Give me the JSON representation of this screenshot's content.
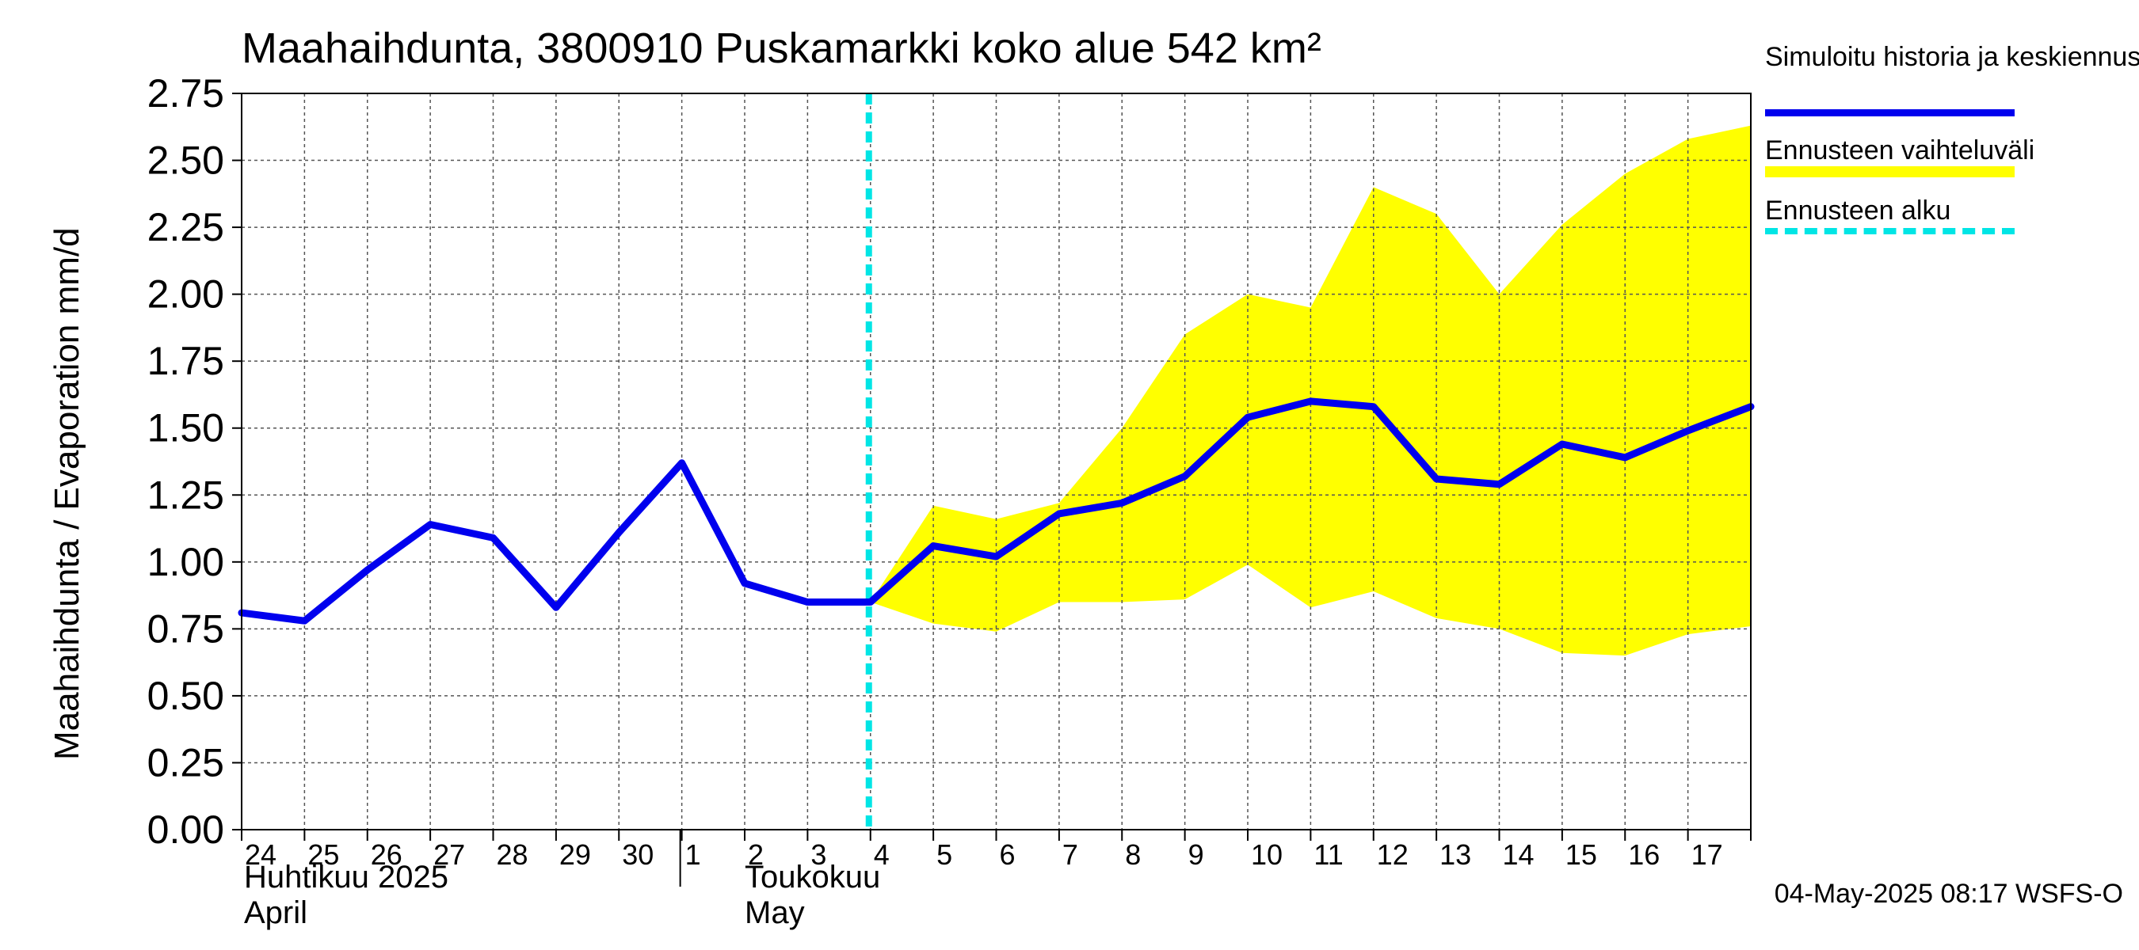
{
  "chart_data": {
    "type": "line",
    "title": "Maahaihdunta, 3800910 Puskamarkki koko alue 542 km²",
    "ylabel": "Maahaihdunta / Evaporation   mm/d",
    "ylim": [
      0,
      2.75
    ],
    "y_ticks": [
      "0.00",
      "0.25",
      "0.50",
      "0.75",
      "1.00",
      "1.25",
      "1.50",
      "1.75",
      "2.00",
      "2.25",
      "2.50",
      "2.75"
    ],
    "x_tick_labels": [
      "24",
      "25",
      "26",
      "27",
      "28",
      "29",
      "30",
      "1",
      "2",
      "3",
      "4",
      "5",
      "6",
      "7",
      "8",
      "9",
      "10",
      "11",
      "12",
      "13",
      "14",
      "15",
      "16",
      "17"
    ],
    "month_labels": {
      "april_fi": "Huhtikuu  2025",
      "april_en": "April",
      "may_fi": "Toukokuu",
      "may_en": "May"
    },
    "dates": [
      "2025-04-24",
      "2025-04-25",
      "2025-04-26",
      "2025-04-27",
      "2025-04-28",
      "2025-04-29",
      "2025-04-30",
      "2025-05-01",
      "2025-05-02",
      "2025-05-03",
      "2025-05-04",
      "2025-05-05",
      "2025-05-06",
      "2025-05-07",
      "2025-05-08",
      "2025-05-09",
      "2025-05-10",
      "2025-05-11",
      "2025-05-12",
      "2025-05-13",
      "2025-05-14",
      "2025-05-15",
      "2025-05-16",
      "2025-05-17",
      "2025-05-18"
    ],
    "series": [
      {
        "name": "Simuloitu historia ja keskiennuste",
        "color": "#0000ee",
        "values": [
          0.81,
          0.78,
          0.97,
          1.14,
          1.09,
          0.83,
          1.11,
          1.37,
          0.92,
          0.85,
          0.85,
          1.06,
          1.02,
          1.18,
          1.22,
          1.32,
          1.54,
          1.6,
          1.58,
          1.31,
          1.29,
          1.44,
          1.39,
          1.49,
          1.58
        ]
      },
      {
        "name": "Ennusteen vaihteluväli",
        "color": "#ffff00",
        "band_dates": [
          "2025-05-04",
          "2025-05-05",
          "2025-05-06",
          "2025-05-07",
          "2025-05-08",
          "2025-05-09",
          "2025-05-10",
          "2025-05-11",
          "2025-05-12",
          "2025-05-13",
          "2025-05-14",
          "2025-05-15",
          "2025-05-16",
          "2025-05-17",
          "2025-05-18"
        ],
        "upper": [
          0.85,
          1.21,
          1.16,
          1.22,
          1.5,
          1.85,
          2.0,
          1.95,
          2.4,
          2.3,
          2.0,
          2.26,
          2.45,
          2.58,
          2.63
        ],
        "lower": [
          0.85,
          0.77,
          0.74,
          0.85,
          0.85,
          0.86,
          0.99,
          0.83,
          0.89,
          0.79,
          0.75,
          0.66,
          0.65,
          0.73,
          0.76
        ]
      }
    ],
    "forecast_start": {
      "name": "Ennusteen alku",
      "date": "2025-05-04",
      "color": "#00e5e5"
    },
    "legend": [
      {
        "label": "Simuloitu historia ja keskiennuste",
        "color": "#0000ee",
        "style": "solid"
      },
      {
        "label": "Ennusteen vaihteluväli",
        "color": "#ffff00",
        "style": "solid"
      },
      {
        "label": "Ennusteen alku",
        "color": "#00e5e5",
        "style": "dashed"
      }
    ],
    "legend_position": "right",
    "grid": true
  },
  "footer": "04-May-2025 08:17 WSFS-O"
}
